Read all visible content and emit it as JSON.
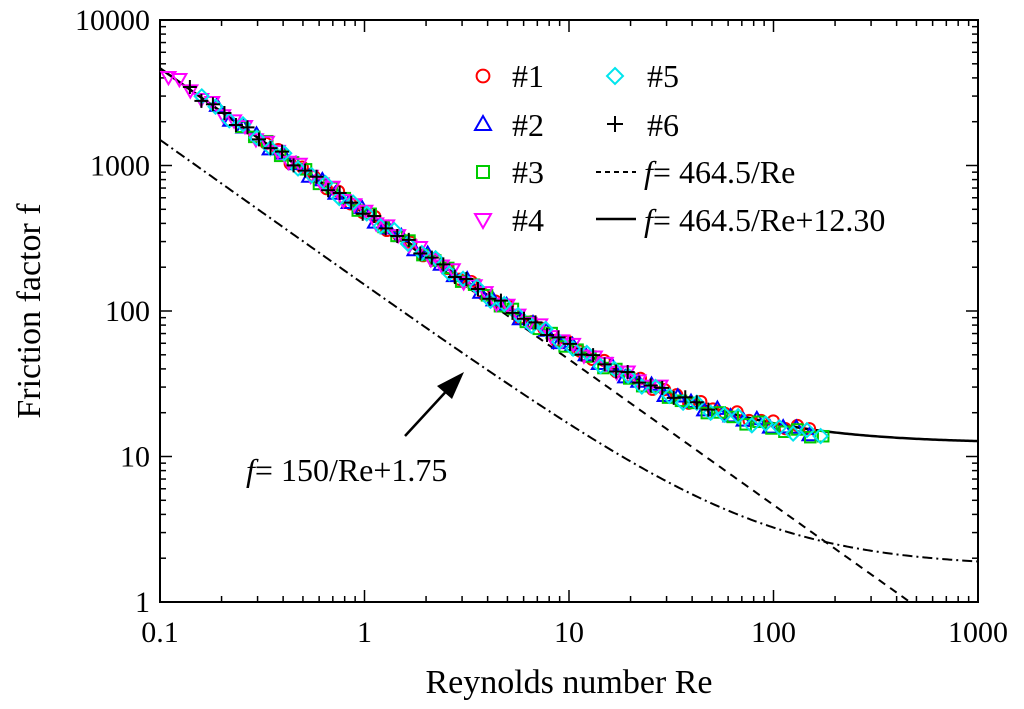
{
  "chart_data": {
    "type": "scatter",
    "x_scale": "log",
    "y_scale": "log",
    "xlabel": "Reynolds number Re",
    "ylabel": "Friction factor f",
    "xlim": [
      0.1,
      1000
    ],
    "ylim": [
      1,
      10000
    ],
    "x_ticks": [
      "0.1",
      "1",
      "10",
      "100",
      "1000"
    ],
    "y_ticks": [
      "1",
      "10",
      "100",
      "1000",
      "10000"
    ],
    "legend_position": "top-right",
    "series": [
      {
        "name": "#1",
        "marker": "circle",
        "color": "#ff0000",
        "re_range": [
          0.33,
          150
        ],
        "offset": 1.0
      },
      {
        "name": "#2",
        "marker": "triangle-up",
        "color": "#0000ff",
        "re_range": [
          0.19,
          150
        ],
        "offset": 0.95
      },
      {
        "name": "#3",
        "marker": "square",
        "color": "#00cc00",
        "re_range": [
          0.25,
          175
        ],
        "offset": 0.9
      },
      {
        "name": "#4",
        "marker": "triangle-down",
        "color": "#ff00ff",
        "re_range": [
          0.11,
          28
        ],
        "offset": 1.02
      },
      {
        "name": "#5",
        "marker": "diamond",
        "color": "#00e5ee",
        "re_range": [
          0.16,
          170
        ],
        "offset": 0.92
      },
      {
        "name": "#6",
        "marker": "plus",
        "color": "#000000",
        "re_range": [
          0.14,
          48
        ],
        "offset": 1.0
      }
    ],
    "curves": [
      {
        "name": "f = 464.5/Re",
        "style": "dashed",
        "a": 464.5,
        "b": 0,
        "color": "#000000"
      },
      {
        "name": "f = 464.5/Re+12.30",
        "style": "solid",
        "a": 464.5,
        "b": 12.3,
        "color": "#000000"
      },
      {
        "name": "f = 150/Re+1.75",
        "style": "dashdot",
        "a": 150,
        "b": 1.75,
        "color": "#000000"
      }
    ],
    "legend_curve_labels": [
      "= 464.5/Re",
      "= 464.5/Re+12.30"
    ],
    "annotation": {
      "italic": "f",
      "text": "= 150/Re+1.75"
    }
  }
}
